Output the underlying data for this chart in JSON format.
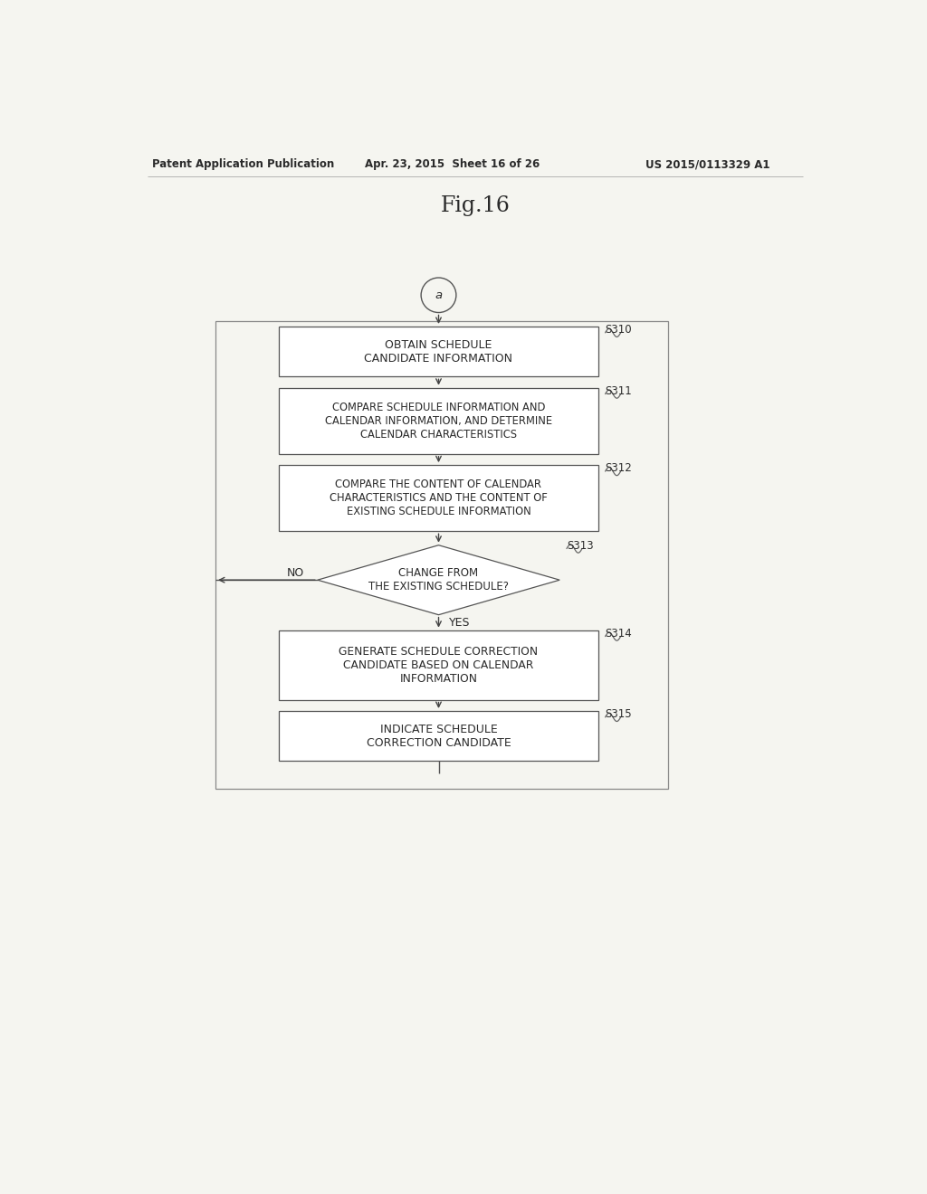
{
  "bg_color": "#f5f5f0",
  "title": "Fig.16",
  "header_left": "Patent Application Publication",
  "header_center": "Apr. 23, 2015  Sheet 16 of 26",
  "header_right": "US 2015/0113329 A1",
  "circle_label": "a",
  "s310_label": "OBTAIN SCHEDULE\nCANDIDATE INFORMATION",
  "s311_label": "COMPARE SCHEDULE INFORMATION AND\nCALENDAR INFORMATION, AND DETERMINE\nCALENDAR CHARACTERISTICS",
  "s312_label": "COMPARE THE CONTENT OF CALENDAR\nCHARACTERISTICS AND THE CONTENT OF\nEXISTING SCHEDULE INFORMATION",
  "s313_label": "CHANGE FROM\nTHE EXISTING SCHEDULE?",
  "s314_label": "GENERATE SCHEDULE CORRECTION\nCANDIDATE BASED ON CALENDAR\nINFORMATION",
  "s315_label": "INDICATE SCHEDULE\nCORRECTION CANDIDATE",
  "step_labels": [
    "S310",
    "S311",
    "S312",
    "S313",
    "S314",
    "S315"
  ],
  "no_label": "NO",
  "yes_label": "YES",
  "text_color": "#2a2a2a",
  "edge_color": "#555555",
  "arrow_color": "#444444",
  "outer_edge_color": "#888888"
}
